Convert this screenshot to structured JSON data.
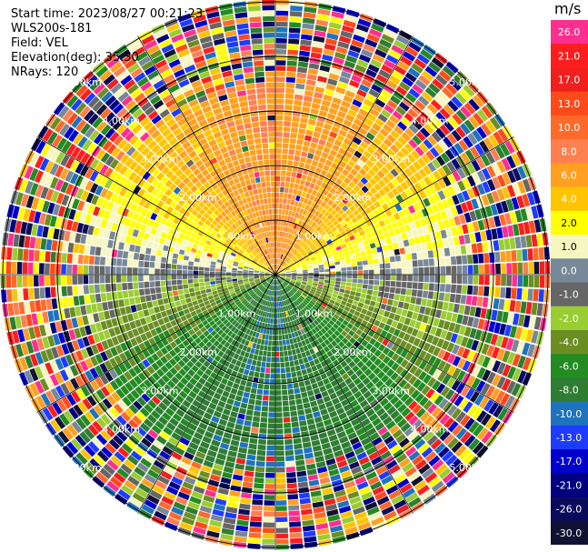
{
  "header": {
    "start_time": "Start time: 2023/08/27 00:21:23",
    "instrument": "WLS200s-181",
    "field": "Field: VEL",
    "elevation": "Elevation(deg): 35.30",
    "nrays": "NRays: 120"
  },
  "colorbar": {
    "unit": "m/s",
    "ticks": [
      "26.0",
      "21.0",
      "17.0",
      "13.0",
      "10.0",
      "8.0",
      "6.0",
      "4.0",
      "2.0",
      "1.0",
      "0.0",
      "-1.0",
      "-2.0",
      "-4.0",
      "-6.0",
      "-8.0",
      "-10.0",
      "-13.0",
      "-17.0",
      "-21.0",
      "-26.0",
      "-30.0"
    ],
    "colors": [
      "#ff2e8f",
      "#ff1e1e",
      "#f0201e",
      "#ff4a1a",
      "#ff6a2a",
      "#ff7f50",
      "#ffa020",
      "#ffc400",
      "#ffff00",
      "#f6f6c0",
      "#778899",
      "#666666",
      "#9acd32",
      "#6b8e23",
      "#228b22",
      "#2e7d32",
      "#1e73be",
      "#1e3cff",
      "#0000cd",
      "#000080",
      "#0a0a5a",
      "#111133"
    ]
  },
  "chart_data": {
    "type": "ppi",
    "field": "VEL",
    "units": "m/s",
    "nrays": 120,
    "range_ring_labels": [
      "1.00km",
      "2.00km",
      "3.00km",
      "4.00km",
      "5.00km"
    ],
    "color_scale_min": -30.0,
    "color_scale_max": 30.0,
    "pattern": "Radial velocity PPI: positive (orange/red, away) toward north, near-zero gray along east-west line, negative (green/blue, toward) toward south, noisy speckle beyond ~3.5 km",
    "rays": [],
    "grid": true
  }
}
